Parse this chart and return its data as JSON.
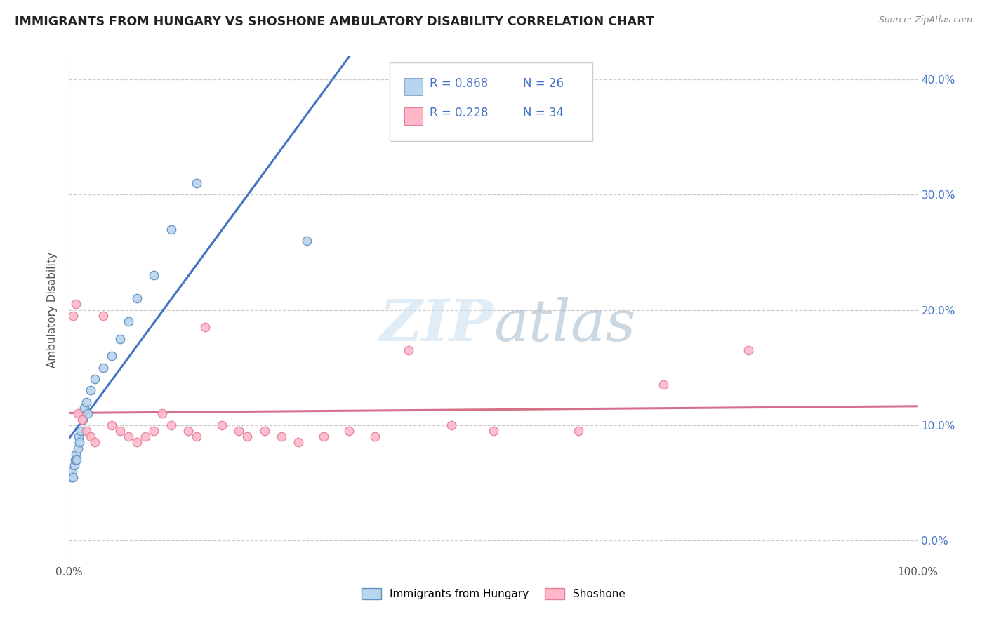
{
  "title": "IMMIGRANTS FROM HUNGARY VS SHOSHONE AMBULATORY DISABILITY CORRELATION CHART",
  "source_text": "Source: ZipAtlas.com",
  "ylabel_label": "Ambulatory Disability",
  "xlim": [
    0,
    100
  ],
  "ylim": [
    -2,
    42
  ],
  "watermark_zip": "ZIP",
  "watermark_atlas": "atlas",
  "legend_r1": "R = 0.868",
  "legend_n1": "N = 26",
  "legend_r2": "R = 0.228",
  "legend_n2": "N = 34",
  "color_blue_fill": "#a8c8e8",
  "color_blue_line": "#4472c4",
  "color_pink_fill": "#ffb3c6",
  "color_pink_line": "#d4708a",
  "hungary_x": [
    0.3,
    0.4,
    0.5,
    0.6,
    0.7,
    0.8,
    0.9,
    1.0,
    1.1,
    1.2,
    1.4,
    1.6,
    1.8,
    2.0,
    2.2,
    2.5,
    3.0,
    4.0,
    5.0,
    6.0,
    7.0,
    8.0,
    10.0,
    12.0,
    15.0,
    28.0
  ],
  "hungary_y": [
    5.5,
    6.0,
    5.5,
    6.5,
    7.0,
    7.5,
    7.0,
    8.0,
    9.0,
    8.5,
    9.5,
    10.5,
    11.5,
    12.0,
    11.0,
    13.0,
    14.0,
    15.0,
    16.0,
    17.5,
    19.0,
    21.0,
    23.0,
    27.0,
    31.0,
    26.0
  ],
  "shoshone_x": [
    0.5,
    0.8,
    1.0,
    1.5,
    2.0,
    2.5,
    3.0,
    4.0,
    5.0,
    6.0,
    7.0,
    8.0,
    9.0,
    10.0,
    11.0,
    12.0,
    14.0,
    15.0,
    16.0,
    18.0,
    20.0,
    21.0,
    23.0,
    25.0,
    27.0,
    30.0,
    33.0,
    36.0,
    40.0,
    45.0,
    50.0,
    60.0,
    70.0,
    80.0
  ],
  "shoshone_y": [
    19.5,
    20.5,
    11.0,
    10.5,
    9.5,
    9.0,
    8.5,
    19.5,
    10.0,
    9.5,
    9.0,
    8.5,
    9.0,
    9.5,
    11.0,
    10.0,
    9.5,
    9.0,
    18.5,
    10.0,
    9.5,
    9.0,
    9.5,
    9.0,
    8.5,
    9.0,
    9.5,
    9.0,
    16.5,
    10.0,
    9.5,
    9.5,
    13.5,
    16.5
  ],
  "ytick_positions": [
    0,
    10,
    20,
    30,
    40
  ],
  "ytick_labels": [
    "0.0%",
    "10.0%",
    "20.0%",
    "30.0%",
    "40.0%"
  ],
  "xtick_positions": [
    0,
    100
  ],
  "xtick_labels": [
    "0.0%",
    "100.0%"
  ],
  "blue_line_x0": -2,
  "blue_line_x1": 35,
  "pink_line_x0": -2,
  "pink_line_x1": 102
}
